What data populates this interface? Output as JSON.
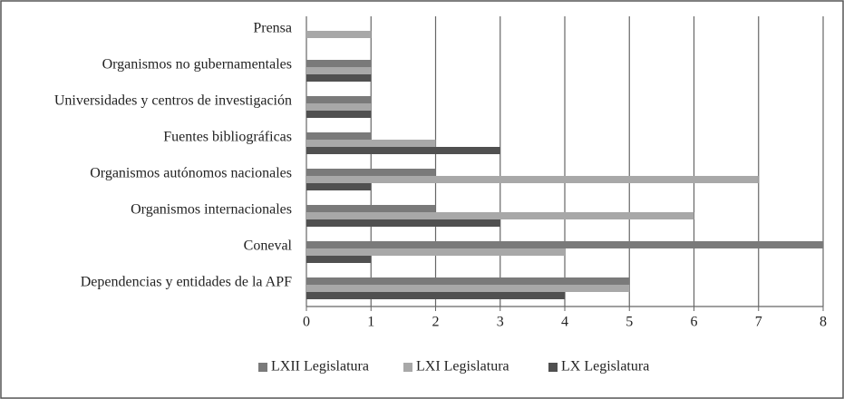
{
  "chart_data": {
    "type": "hbar",
    "categories": [
      "Prensa",
      "Organismos no gubernamentales",
      "Universidades y centros de investigación",
      "Fuentes bibliográficas",
      "Organismos autónomos nacionales",
      "Organismos internacionales",
      "Coneval",
      "Dependencias y entidades de la APF"
    ],
    "series": [
      {
        "name": "LXII Legislatura",
        "color": "#7a7a7a",
        "values": [
          0,
          1,
          1,
          1,
          2,
          2,
          8,
          5
        ]
      },
      {
        "name": "LXI Legislatura",
        "color": "#a8a8a8",
        "values": [
          1,
          1,
          1,
          2,
          7,
          6,
          4,
          5
        ]
      },
      {
        "name": "LX Legislatura",
        "color": "#505050",
        "values": [
          0,
          1,
          1,
          3,
          1,
          3,
          1,
          4
        ]
      }
    ],
    "xlim": [
      0,
      8
    ],
    "xticks": [
      0,
      1,
      2,
      3,
      4,
      5,
      6,
      7,
      8
    ],
    "grid": true,
    "legend": "bottom"
  }
}
